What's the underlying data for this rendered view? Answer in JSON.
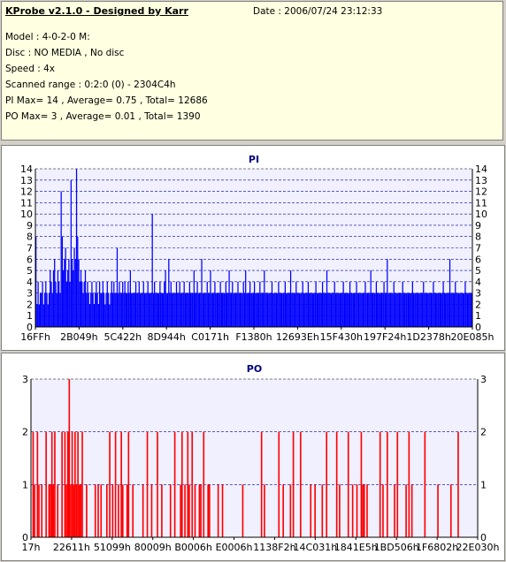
{
  "app_title": "KProbe v2.1.0 - Designed by Karr",
  "date_line": "Date : 2006/07/24 23:12:33",
  "info_lines": [
    "Model : 4-0-2-0 M:",
    "Disc : NO MEDIA , No disc",
    "Speed : 4x",
    "Scanned range : 0:2:0 (0) - 2304C4h",
    "PI Max= 14 , Average= 0.75 , Total= 12686",
    "PO Max= 3 , Average= 0.01 , Total= 1390"
  ],
  "colors": {
    "panel_bg": "#d4d0c8",
    "info_bg": "#ffffe1",
    "plot_bg": "#f0f0ff",
    "pi_bar": "#0000ff",
    "po_bar": "#ff0000",
    "title": "#000080"
  },
  "chart_data": [
    {
      "type": "bar",
      "title": "PI",
      "ylim": [
        0,
        14
      ],
      "yticks": [
        0,
        1,
        2,
        3,
        4,
        5,
        6,
        7,
        8,
        9,
        10,
        11,
        12,
        13,
        14
      ],
      "xtick_labels": [
        "16FFh",
        "2B049h",
        "5C422h",
        "8D944h",
        "C0171h",
        "F1380h",
        "12693Eh",
        "15F430h",
        "197F24h",
        "1D2378h",
        "20E085h"
      ],
      "grid": true,
      "values": [
        8,
        2,
        4,
        2,
        3,
        3,
        4,
        2,
        3,
        4,
        3,
        2,
        3,
        5,
        4,
        3,
        5,
        6,
        4,
        3,
        5,
        4,
        3,
        12,
        8,
        5,
        6,
        7,
        4,
        5,
        6,
        4,
        13,
        6,
        5,
        7,
        6,
        14,
        8,
        6,
        4,
        5,
        4,
        3,
        4,
        5,
        3,
        4,
        3,
        2,
        3,
        4,
        3,
        2,
        3,
        4,
        3,
        2,
        4,
        3,
        3,
        4,
        3,
        2,
        3,
        4,
        3,
        2,
        3,
        4,
        3,
        4,
        3,
        3,
        7,
        3,
        4,
        3,
        3,
        4,
        3,
        4,
        3,
        3,
        4,
        3,
        5,
        3,
        3,
        3,
        3,
        4,
        3,
        3,
        4,
        3,
        3,
        3,
        4,
        3,
        3,
        3,
        4,
        3,
        3,
        3,
        10,
        3,
        4,
        3,
        3,
        3,
        3,
        4,
        3,
        3,
        3,
        4,
        5,
        3,
        3,
        6,
        3,
        4,
        3,
        3,
        3,
        3,
        4,
        3,
        3,
        4,
        3,
        3,
        3,
        4,
        3,
        3,
        3,
        3,
        4,
        3,
        3,
        3,
        5,
        3,
        3,
        4,
        3,
        3,
        3,
        6,
        3,
        3,
        3,
        3,
        4,
        3,
        3,
        5,
        3,
        3,
        3,
        4,
        3,
        3,
        3,
        3,
        4,
        3,
        3,
        3,
        3,
        4,
        3,
        3,
        5,
        3,
        3,
        4,
        3,
        3,
        3,
        3,
        4,
        3,
        3,
        3,
        3,
        4,
        3,
        5,
        3,
        3,
        3,
        4,
        3,
        3,
        3,
        4,
        3,
        3,
        3,
        3,
        4,
        3,
        3,
        3,
        5,
        3,
        3,
        3,
        3,
        3,
        3,
        4,
        3,
        3,
        3,
        3,
        3,
        4,
        3,
        3,
        3,
        3,
        3,
        4,
        3,
        3,
        3,
        3,
        5,
        3,
        3,
        3,
        3,
        4,
        3,
        3,
        3,
        3,
        3,
        4,
        3,
        3,
        3,
        3,
        4,
        3,
        3,
        3,
        3,
        3,
        3,
        4,
        3,
        3,
        3,
        3,
        3,
        4,
        3,
        3,
        3,
        5,
        3,
        3,
        3,
        3,
        3,
        3,
        4,
        3,
        3,
        3,
        3,
        3,
        3,
        3,
        4,
        3,
        3,
        3,
        3,
        3,
        4,
        3,
        3,
        3,
        3,
        3,
        4,
        3,
        3,
        3,
        3,
        3,
        3,
        3,
        4,
        3,
        3,
        3,
        3,
        5,
        3,
        3,
        3,
        3,
        4,
        3,
        3,
        3,
        3,
        3,
        3,
        4,
        3,
        3,
        6,
        3,
        3,
        3,
        3,
        3,
        4,
        3,
        3,
        3,
        3,
        3,
        3,
        3,
        4,
        3,
        3,
        3,
        3,
        3,
        3,
        3,
        3,
        4,
        3,
        3,
        3,
        3,
        3,
        3,
        3,
        3,
        3,
        4,
        3,
        3,
        3,
        3,
        3,
        3,
        3,
        3,
        4,
        3,
        3,
        3,
        3,
        3,
        3,
        3,
        3,
        4,
        3,
        3,
        3,
        3,
        3,
        6,
        3,
        3,
        3,
        3,
        4,
        3,
        3,
        3,
        3,
        3,
        3,
        3,
        3,
        4,
        3,
        3,
        3,
        3,
        3,
        3
      ]
    },
    {
      "type": "bar",
      "title": "PO",
      "ylim": [
        0,
        3
      ],
      "yticks": [
        0,
        1,
        2,
        3
      ],
      "xtick_labels": [
        "17h",
        "22611h",
        "51099h",
        "80009h",
        "B0006h",
        "E0006h",
        "1138F2h",
        "14C031h",
        "1841E5h",
        "1BD506h",
        "1F6802h",
        "22E030h"
      ],
      "grid": true,
      "values": [
        0,
        2,
        1,
        0,
        2,
        1,
        0,
        1,
        0,
        0,
        2,
        0,
        1,
        1,
        2,
        1,
        2,
        0,
        1,
        0,
        0,
        2,
        0,
        2,
        1,
        2,
        3,
        1,
        2,
        1,
        2,
        1,
        2,
        1,
        1,
        2,
        0,
        0,
        1,
        0,
        0,
        0,
        0,
        0,
        1,
        0,
        1,
        0,
        1,
        0,
        0,
        0,
        1,
        0,
        2,
        0,
        1,
        0,
        2,
        0,
        1,
        0,
        2,
        1,
        0,
        0,
        1,
        2,
        0,
        0,
        1,
        0,
        0,
        0,
        0,
        0,
        0,
        1,
        0,
        0,
        2,
        0,
        0,
        1,
        0,
        0,
        0,
        2,
        0,
        0,
        1,
        0,
        0,
        0,
        0,
        0,
        1,
        0,
        0,
        2,
        0,
        0,
        0,
        1,
        2,
        0,
        1,
        0,
        2,
        1,
        0,
        2,
        0,
        1,
        0,
        0,
        1,
        1,
        0,
        2,
        0,
        0,
        1,
        1,
        0,
        0,
        0,
        0,
        0,
        1,
        0,
        0,
        1,
        0,
        0,
        0,
        0,
        0,
        0,
        0,
        0,
        0,
        0,
        0,
        0,
        0,
        1,
        0,
        0,
        0,
        0,
        0,
        0,
        0,
        0,
        0,
        0,
        0,
        0,
        2,
        0,
        1,
        0,
        0,
        0,
        0,
        0,
        0,
        0,
        0,
        0,
        2,
        0,
        0,
        1,
        0,
        0,
        0,
        0,
        1,
        0,
        2,
        0,
        0,
        0,
        0,
        2,
        0,
        0,
        0,
        0,
        0,
        0,
        1,
        0,
        0,
        1,
        0,
        0,
        0,
        0,
        1,
        0,
        0,
        2,
        0,
        0,
        0,
        0,
        0,
        0,
        2,
        0,
        1,
        0,
        0,
        0,
        0,
        0,
        2,
        0,
        0,
        1,
        0,
        0,
        1,
        0,
        0,
        2,
        1,
        1,
        0,
        1,
        0,
        0,
        0,
        0,
        0,
        0,
        0,
        0,
        2,
        0,
        1,
        0,
        0,
        2,
        0,
        0,
        0,
        0,
        1,
        0,
        2,
        0,
        0,
        0,
        0,
        0,
        1,
        0,
        2,
        0,
        1,
        0,
        0,
        0,
        0,
        0,
        0,
        0,
        0,
        2,
        0,
        0,
        0,
        0,
        0,
        0,
        0,
        0,
        1,
        0,
        0,
        0,
        0,
        0,
        0,
        0,
        0,
        1,
        0,
        0,
        0,
        0,
        2,
        0,
        0,
        0,
        0,
        0,
        0,
        0,
        0,
        0,
        0,
        0,
        0,
        0
      ]
    }
  ]
}
